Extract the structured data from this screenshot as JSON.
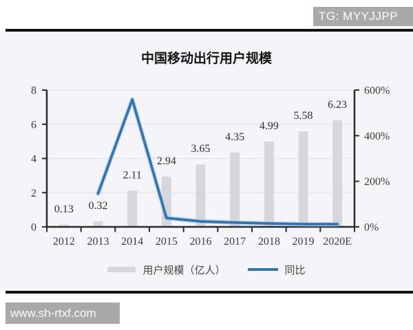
{
  "overlay": {
    "top_badge": "TG: MYYJJPP",
    "bottom_badge": "www.sh-rtxf.com"
  },
  "chart_data": {
    "type": "bar",
    "title": "中国移动出行用户规模",
    "categories": [
      "2012",
      "2013",
      "2014",
      "2015",
      "2016",
      "2017",
      "2018",
      "2019",
      "2020E"
    ],
    "series": [
      {
        "name": "用户规模（亿人）",
        "type": "bar",
        "axis": "left",
        "values": [
          0.13,
          0.32,
          2.11,
          2.94,
          3.65,
          4.35,
          4.99,
          5.58,
          6.23
        ]
      },
      {
        "name": "同比",
        "type": "line",
        "axis": "right",
        "values_pct": [
          null,
          146,
          559,
          39,
          24,
          19,
          15,
          12,
          12
        ]
      }
    ],
    "bar_labels": [
      "0.13",
      "0.32",
      "2.11",
      "2.94",
      "3.65",
      "4.35",
      "4.99",
      "5.58",
      "6.23"
    ],
    "left_axis": {
      "min": 0,
      "max": 8,
      "tick_values": [
        0,
        2,
        4,
        6,
        8
      ],
      "tick_labels": [
        "0",
        "2",
        "4",
        "6",
        "8"
      ]
    },
    "right_axis": {
      "min": 0,
      "max": 600,
      "tick_values": [
        0,
        200,
        400,
        600
      ],
      "tick_labels": [
        "0%",
        "200%",
        "400%",
        "600%"
      ]
    },
    "legend": [
      {
        "label": "用户规模（亿人）",
        "swatch": "bar"
      },
      {
        "label": "同比",
        "swatch": "line"
      }
    ],
    "grid": "horizontal"
  },
  "colors": {
    "bar": "#d7d6da",
    "line": "#2e75b6",
    "line_halo": "#aecfec",
    "grid": "#e9e6eb",
    "axis": "#2b2b2b",
    "panel_bg": "#f5f4f8",
    "badge_bg": "#a9a9a9"
  }
}
